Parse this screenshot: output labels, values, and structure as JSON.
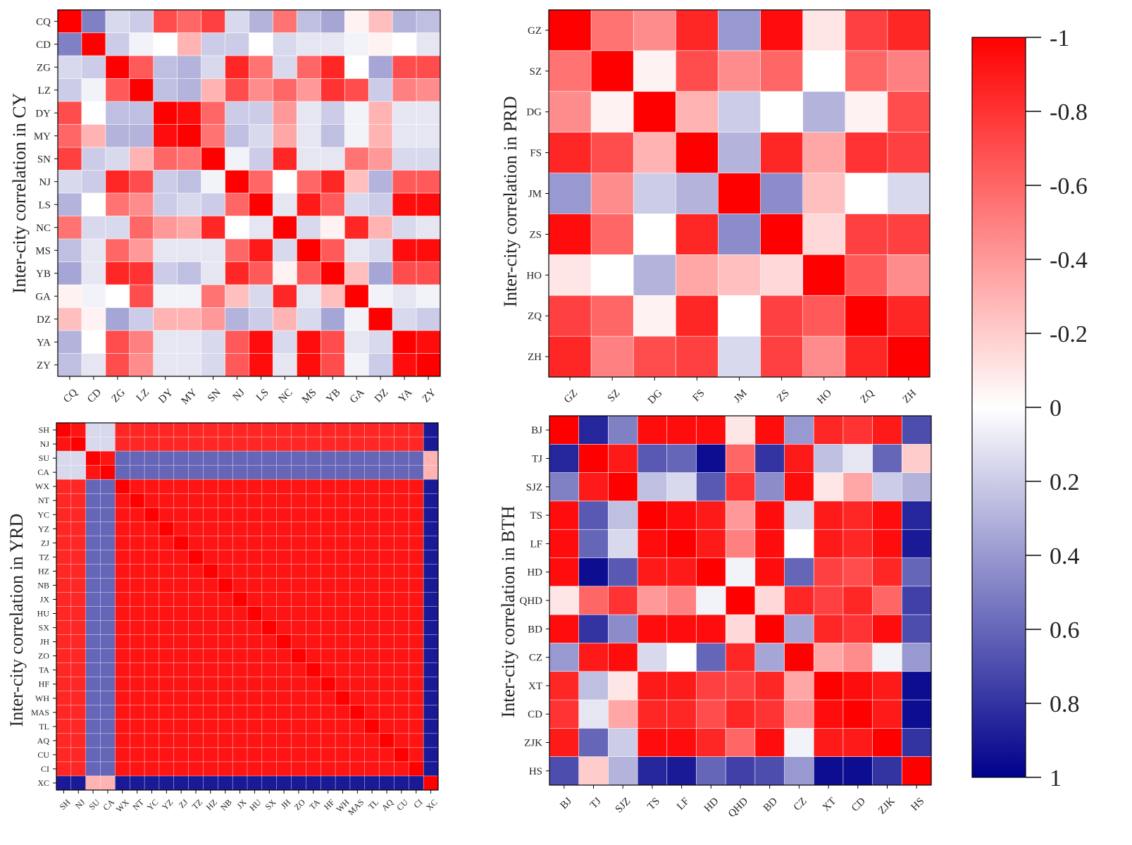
{
  "chart_data": [
    {
      "type": "heatmap",
      "id": "cy",
      "ylabel": "Inter-city correlation in CY",
      "categories": [
        "CQ",
        "CD",
        "ZG",
        "LZ",
        "DY",
        "MY",
        "SN",
        "NJ",
        "LS",
        "NC",
        "MS",
        "YB",
        "GA",
        "DZ",
        "YA",
        "ZY"
      ],
      "values": [
        [
          -1.0,
          0.5,
          0.15,
          0.2,
          -0.7,
          -0.6,
          -0.75,
          0.15,
          0.3,
          -0.55,
          0.25,
          0.35,
          -0.05,
          -0.25,
          0.3,
          0.25
        ],
        [
          0.5,
          -1.0,
          0.2,
          0.05,
          0.0,
          -0.3,
          0.2,
          0.2,
          0.0,
          0.15,
          0.1,
          0.1,
          0.05,
          -0.05,
          0.0,
          0.1
        ],
        [
          0.15,
          0.2,
          -1.0,
          -0.65,
          0.25,
          0.3,
          0.15,
          -0.85,
          -0.55,
          0.15,
          -0.6,
          -0.85,
          0.0,
          0.35,
          -0.7,
          -0.7
        ],
        [
          0.2,
          0.05,
          -0.65,
          -1.0,
          0.25,
          0.3,
          -0.3,
          -0.7,
          -0.45,
          -0.6,
          -0.4,
          -0.8,
          -0.7,
          0.2,
          -0.5,
          -0.45
        ],
        [
          -0.7,
          0.0,
          0.25,
          0.25,
          -1.0,
          -0.95,
          -0.6,
          0.2,
          0.2,
          -0.4,
          0.1,
          0.2,
          0.05,
          -0.3,
          0.1,
          0.1
        ],
        [
          -0.6,
          -0.3,
          0.3,
          0.3,
          -0.95,
          -1.0,
          -0.55,
          0.25,
          0.15,
          -0.35,
          0.1,
          0.25,
          0.05,
          -0.3,
          0.1,
          0.1
        ],
        [
          -0.75,
          0.2,
          0.15,
          -0.3,
          -0.6,
          -0.55,
          -1.0,
          0.05,
          0.2,
          -0.85,
          0.1,
          0.1,
          -0.55,
          -0.4,
          0.15,
          0.15
        ],
        [
          0.15,
          0.2,
          -0.85,
          -0.7,
          0.2,
          0.25,
          0.05,
          -1.0,
          -0.6,
          0.0,
          -0.6,
          -0.85,
          -0.25,
          0.3,
          -0.65,
          -0.65
        ],
        [
          0.3,
          0.0,
          -0.55,
          -0.45,
          0.2,
          0.15,
          0.2,
          -0.6,
          -1.0,
          0.1,
          -0.9,
          -0.65,
          0.15,
          0.2,
          -0.95,
          -0.95
        ],
        [
          -0.55,
          0.15,
          0.15,
          -0.6,
          -0.4,
          -0.35,
          -0.85,
          0.0,
          0.1,
          -1.0,
          0.15,
          -0.05,
          -0.85,
          -0.3,
          0.15,
          0.1
        ],
        [
          0.25,
          0.1,
          -0.6,
          -0.4,
          0.1,
          0.1,
          0.1,
          -0.6,
          -0.9,
          0.15,
          -1.0,
          -0.65,
          0.1,
          0.15,
          -0.95,
          -0.95
        ],
        [
          0.35,
          0.1,
          -0.85,
          -0.8,
          0.2,
          0.25,
          0.1,
          -0.85,
          -0.65,
          -0.05,
          -0.65,
          -1.0,
          -0.25,
          0.35,
          -0.7,
          -0.7
        ],
        [
          -0.05,
          0.05,
          0.0,
          -0.7,
          0.05,
          0.05,
          -0.55,
          -0.25,
          0.15,
          -0.85,
          0.1,
          -0.25,
          -1.0,
          0.05,
          0.1,
          0.05
        ],
        [
          -0.25,
          -0.05,
          0.35,
          0.2,
          -0.3,
          -0.3,
          -0.4,
          0.3,
          0.2,
          -0.3,
          0.15,
          0.35,
          0.05,
          -1.0,
          0.15,
          0.2
        ],
        [
          0.3,
          0.0,
          -0.7,
          -0.5,
          0.1,
          0.1,
          0.15,
          -0.65,
          -0.95,
          0.15,
          -0.95,
          -0.7,
          0.1,
          0.15,
          -1.0,
          -0.95
        ],
        [
          0.25,
          0.1,
          -0.7,
          -0.45,
          0.1,
          0.1,
          0.15,
          -0.65,
          -0.95,
          0.1,
          -0.95,
          -0.7,
          0.05,
          0.2,
          -0.95,
          -1.0
        ]
      ]
    },
    {
      "type": "heatmap",
      "id": "prd",
      "ylabel": "Inter-city correlation in PRD",
      "categories": [
        "GZ",
        "SZ",
        "DG",
        "FS",
        "JM",
        "ZS",
        "HO",
        "ZQ",
        "ZH"
      ],
      "values": [
        [
          -1.0,
          -0.55,
          -0.45,
          -0.85,
          0.4,
          -0.95,
          -0.1,
          -0.75,
          -0.85
        ],
        [
          -0.55,
          -1.0,
          -0.05,
          -0.7,
          -0.45,
          -0.6,
          0.0,
          -0.6,
          -0.5
        ],
        [
          -0.45,
          -0.05,
          -1.0,
          -0.3,
          0.2,
          0.0,
          0.3,
          -0.05,
          -0.7
        ],
        [
          -0.85,
          -0.7,
          -0.3,
          -1.0,
          0.3,
          -0.85,
          -0.35,
          -0.8,
          -0.75
        ],
        [
          0.4,
          -0.45,
          0.2,
          0.3,
          -1.0,
          0.45,
          -0.25,
          0.0,
          0.15
        ],
        [
          -0.95,
          -0.6,
          0.0,
          -0.85,
          0.45,
          -1.0,
          -0.15,
          -0.75,
          -0.75
        ],
        [
          -0.1,
          0.0,
          0.3,
          -0.35,
          -0.25,
          -0.15,
          -1.0,
          -0.65,
          -0.45
        ],
        [
          -0.75,
          -0.6,
          -0.05,
          -0.85,
          0.0,
          -0.75,
          -0.65,
          -1.0,
          -0.85
        ],
        [
          -0.85,
          -0.5,
          -0.7,
          -0.75,
          0.15,
          -0.75,
          -0.45,
          -0.85,
          -1.0
        ]
      ]
    },
    {
      "type": "heatmap",
      "id": "yrd",
      "ylabel": "Inter-city correlation in YRD",
      "categories": [
        "SH",
        "NJ",
        "SU",
        "CA",
        "WX",
        "NT",
        "YC",
        "YZ",
        "ZJ",
        "TZ",
        "HZ",
        "NB",
        "JX",
        "HU",
        "SX",
        "JH",
        "ZO",
        "TA",
        "HF",
        "WH",
        "MAS",
        "TL",
        "AQ",
        "CU",
        "CI",
        "XC"
      ]
    },
    {
      "type": "heatmap",
      "id": "bth",
      "ylabel": "Inter-city correlation in BTH",
      "categories": [
        "BJ",
        "TJ",
        "SJZ",
        "TS",
        "LF",
        "HD",
        "QHD",
        "BD",
        "CZ",
        "XT",
        "CD",
        "ZJK",
        "HS"
      ],
      "values": [
        [
          -1.0,
          0.85,
          0.5,
          -0.95,
          -0.95,
          -0.95,
          -0.1,
          -0.95,
          0.4,
          -0.85,
          -0.8,
          -0.9,
          0.7
        ],
        [
          0.85,
          -1.0,
          -0.9,
          0.65,
          0.6,
          0.95,
          -0.6,
          0.8,
          -0.9,
          0.25,
          0.1,
          0.6,
          -0.2
        ],
        [
          0.5,
          -0.9,
          -1.0,
          0.25,
          0.15,
          0.65,
          -0.8,
          0.45,
          -0.95,
          -0.1,
          -0.35,
          0.2,
          0.3
        ],
        [
          -0.95,
          0.65,
          0.25,
          -1.0,
          -0.95,
          -0.9,
          -0.4,
          -0.95,
          0.15,
          -0.9,
          -0.85,
          -0.95,
          0.85
        ],
        [
          -0.95,
          0.6,
          0.15,
          -0.95,
          -1.0,
          -0.9,
          -0.5,
          -0.95,
          0.0,
          -0.9,
          -0.85,
          -0.95,
          0.9
        ],
        [
          -0.95,
          0.95,
          0.65,
          -0.9,
          -0.9,
          -1.0,
          0.05,
          -0.95,
          0.6,
          -0.75,
          -0.7,
          -0.85,
          0.6
        ],
        [
          -0.1,
          -0.6,
          -0.8,
          -0.4,
          -0.5,
          0.05,
          -1.0,
          -0.15,
          -0.85,
          -0.75,
          -0.85,
          -0.6,
          0.75
        ],
        [
          -0.95,
          0.8,
          0.45,
          -0.95,
          -0.95,
          -0.95,
          -0.15,
          -1.0,
          0.35,
          -0.85,
          -0.8,
          -0.95,
          0.7
        ],
        [
          0.4,
          -0.9,
          -0.95,
          0.15,
          0.0,
          0.6,
          -0.85,
          0.35,
          -1.0,
          -0.35,
          -0.45,
          0.05,
          0.4
        ],
        [
          -0.85,
          0.25,
          -0.1,
          -0.9,
          -0.9,
          -0.75,
          -0.75,
          -0.85,
          -0.35,
          -1.0,
          -0.95,
          -0.9,
          0.95
        ],
        [
          -0.8,
          0.1,
          -0.35,
          -0.85,
          -0.85,
          -0.7,
          -0.85,
          -0.8,
          -0.45,
          -0.95,
          -1.0,
          -0.9,
          0.95
        ],
        [
          -0.9,
          0.6,
          0.2,
          -0.95,
          -0.95,
          -0.85,
          -0.6,
          -0.95,
          0.05,
          -0.9,
          -0.9,
          -1.0,
          0.8
        ],
        [
          0.7,
          -0.2,
          0.3,
          0.85,
          0.9,
          0.6,
          0.75,
          0.7,
          0.4,
          0.95,
          0.95,
          0.8,
          -1.0
        ]
      ]
    }
  ],
  "colorbar": {
    "ticks": [
      "-1",
      "-0.8",
      "-0.6",
      "-0.4",
      "-0.2",
      "0",
      "0.2",
      "0.4",
      "0.6",
      "0.8",
      "1"
    ],
    "min": -1,
    "max": 1,
    "color_neg": "#ff0000",
    "color_zero": "#ffffff",
    "color_pos": "#00008b"
  },
  "yrd_groups": {
    "A": [
      "SH",
      "NJ"
    ],
    "B": [
      "SU",
      "CA"
    ],
    "C": [
      "WX",
      "NT",
      "YC",
      "YZ",
      "ZJ",
      "TZ",
      "HZ",
      "NB",
      "JX",
      "HU",
      "SX",
      "JH",
      "ZO",
      "TA",
      "HF",
      "WH",
      "MAS",
      "TL",
      "AQ",
      "CU",
      "CI"
    ],
    "D": [
      "XC"
    ],
    "within": -0.92,
    "AB": 0.15,
    "AC": -0.85,
    "AD": 0.9,
    "BC": 0.6,
    "BD": -0.3,
    "CD": 0.9
  }
}
